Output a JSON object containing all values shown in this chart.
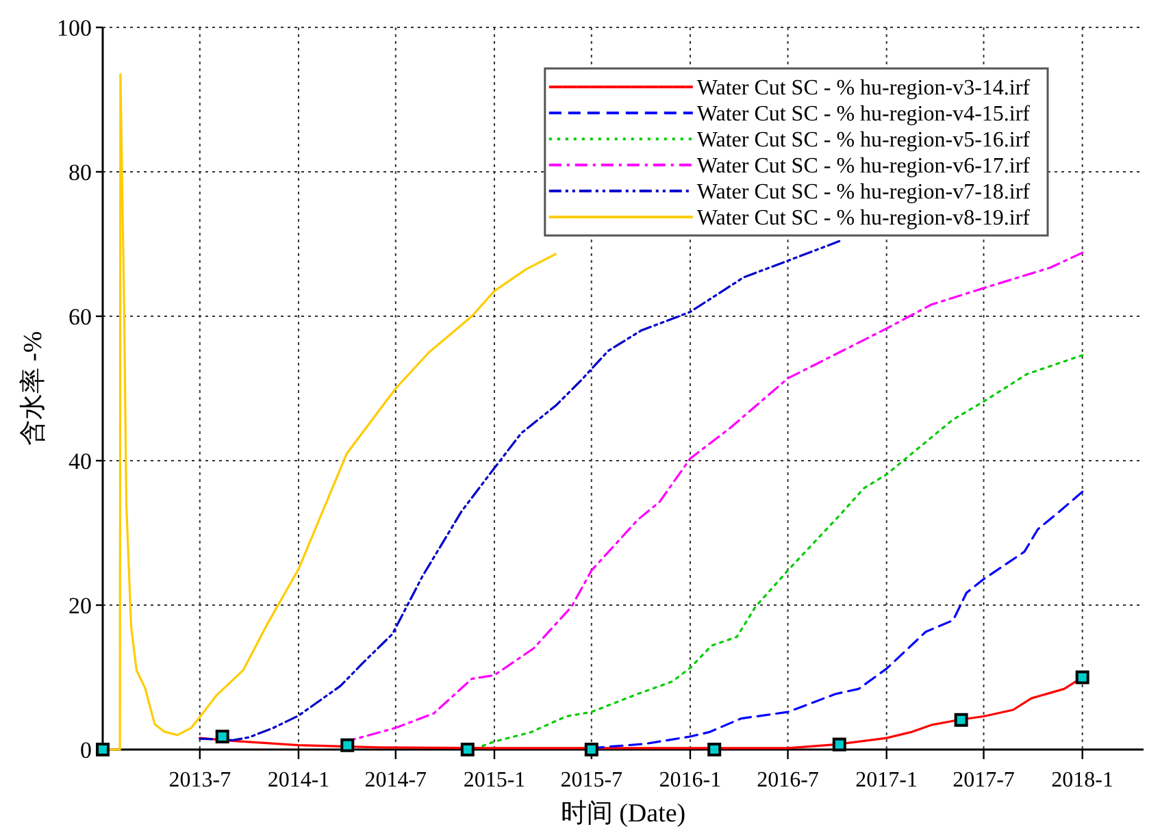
{
  "chart_data": {
    "type": "line",
    "xlabel": "时间 (Date)",
    "ylabel": "含水率 -%",
    "xlim": [
      "2013-01-01",
      "2018-04-25"
    ],
    "ylim": [
      0,
      100
    ],
    "yticks": [
      0,
      20,
      40,
      60,
      80,
      100
    ],
    "xticks": [
      {
        "value": "2013-07-01",
        "label": "2013-7"
      },
      {
        "value": "2014-01-01",
        "label": "2014-1"
      },
      {
        "value": "2014-07-01",
        "label": "2014-7"
      },
      {
        "value": "2015-01-01",
        "label": "2015-1"
      },
      {
        "value": "2015-07-01",
        "label": "2015-7"
      },
      {
        "value": "2016-01-01",
        "label": "2016-1"
      },
      {
        "value": "2016-07-01",
        "label": "2016-7"
      },
      {
        "value": "2017-01-01",
        "label": "2017-1"
      },
      {
        "value": "2017-07-01",
        "label": "2017-7"
      },
      {
        "value": "2018-01-01",
        "label": "2018-1"
      }
    ],
    "grid": true,
    "legend": "top right",
    "series": [
      {
        "name": "Water Cut SC - % hu-region-v3-14.irf",
        "color": "#ff0000",
        "line_style": "solid",
        "x": [
          "2013-07-01",
          "2013-09-01",
          "2014-01-01",
          "2014-06-01",
          "2015-01-01",
          "2016-07-01",
          "2016-09-28",
          "2017-01-01",
          "2017-02-15",
          "2017-03-25",
          "2017-05-15",
          "2017-07-01",
          "2017-08-25",
          "2017-09-28",
          "2017-11-28",
          "2018-01-01"
        ],
        "values": [
          1.6,
          1.2,
          0.6,
          0.3,
          0.2,
          0.2,
          0.7,
          1.6,
          2.4,
          3.4,
          4.1,
          4.6,
          5.5,
          7.1,
          8.4,
          10
        ]
      },
      {
        "name": "Water Cut SC - % hu-region-v4-15.irf",
        "color": "#0000ff",
        "line_style": "dashed",
        "x": [
          "2015-07-01",
          "2015-10-10",
          "2016-01-01",
          "2016-02-05",
          "2016-04-05",
          "2016-07-01",
          "2016-09-28",
          "2016-11-10",
          "2017-01-01",
          "2017-03-15",
          "2017-05-05",
          "2017-05-30",
          "2017-07-01",
          "2017-09-15",
          "2017-10-10",
          "2017-11-15",
          "2018-01-01"
        ],
        "values": [
          0.2,
          0.8,
          1.8,
          2.4,
          4.3,
          5.2,
          7.7,
          8.4,
          11.2,
          16.3,
          17.9,
          21.7,
          23.6,
          27.4,
          30.5,
          32.7,
          35.7
        ]
      },
      {
        "name": "Water Cut SC - % hu-region-v5-16.irf",
        "color": "#00cc00",
        "line_style": "dotted",
        "x": [
          "2014-12-10",
          "2015-01-01",
          "2015-03-10",
          "2015-05-15",
          "2015-07-01",
          "2015-09-25",
          "2015-11-28",
          "2016-01-01",
          "2016-02-10",
          "2016-03-28",
          "2016-05-02",
          "2016-07-01",
          "2016-10-05",
          "2016-11-20",
          "2017-01-01",
          "2017-05-05",
          "2017-07-01",
          "2017-09-20",
          "2018-01-01"
        ],
        "values": [
          0.5,
          1.1,
          2.4,
          4.6,
          5.2,
          7.7,
          9.4,
          11.3,
          14.4,
          15.6,
          19.8,
          24.8,
          32.4,
          36.2,
          38.1,
          45.7,
          48.2,
          52,
          54.6
        ]
      },
      {
        "name": "Water Cut SC - % hu-region-v6-17.irf",
        "color": "#ff00ff",
        "line_style": "dashdot",
        "x": [
          "2014-03-25",
          "2014-07-01",
          "2014-09-10",
          "2014-11-20",
          "2015-01-01",
          "2015-03-15",
          "2015-05-25",
          "2015-07-01",
          "2015-09-25",
          "2015-11-05",
          "2016-01-01",
          "2016-03-15",
          "2016-07-01",
          "2017-01-01",
          "2017-03-25",
          "2017-07-01",
          "2017-11-01",
          "2018-01-01"
        ],
        "values": [
          1.0,
          3,
          5,
          9.8,
          10.3,
          14,
          19.8,
          24.8,
          31.8,
          34.3,
          40.3,
          44.5,
          51.4,
          58.3,
          61.6,
          63.9,
          66.7,
          68.8
        ]
      },
      {
        "name": "Water Cut SC - % hu-region-v7-18.irf",
        "color": "#0000cc",
        "line_style": "dashdotdot",
        "x": [
          "2013-07-01",
          "2013-09-01",
          "2013-10-01",
          "2013-11-15",
          "2014-01-01",
          "2014-03-20",
          "2014-05-01",
          "2014-06-25",
          "2014-08-20",
          "2014-11-01",
          "2014-12-25",
          "2015-02-20",
          "2015-04-25",
          "2015-06-10",
          "2015-08-01",
          "2015-10-01",
          "2016-01-01",
          "2016-04-10",
          "2016-07-05",
          "2016-10-05"
        ],
        "values": [
          1.5,
          1.3,
          1.7,
          3.0,
          4.7,
          8.8,
          12,
          16,
          24,
          33,
          38.3,
          43.8,
          47.6,
          51,
          55.2,
          58,
          60.6,
          65.4,
          67.8,
          70.4
        ]
      },
      {
        "name": "Water Cut SC - % hu-region-v8-19.irf",
        "color": "#ffcc00",
        "line_style": "solid",
        "x": [
          "2013-01-01",
          "2013-02-02",
          "2013-02-03",
          "2013-02-10",
          "2013-02-14",
          "2013-02-23",
          "2013-03-05",
          "2013-03-21",
          "2013-04-08",
          "2013-04-25",
          "2013-05-20",
          "2013-06-15",
          "2013-07-01",
          "2013-08-01",
          "2013-09-20",
          "2013-11-01",
          "2014-01-01",
          "2014-02-15",
          "2014-04-01",
          "2014-07-01",
          "2014-09-01",
          "2014-11-20",
          "2015-01-01",
          "2015-03-01",
          "2015-04-25"
        ],
        "values": [
          0,
          0,
          93.5,
          61,
          34,
          17,
          11,
          8.5,
          3.5,
          2.5,
          2.0,
          3.0,
          4.5,
          7.5,
          11,
          17,
          25,
          33,
          41,
          50,
          55,
          60,
          63.5,
          66.5,
          68.6
        ]
      },
      {
        "type": "scatter",
        "marker": "square",
        "color": "#000000",
        "x": [
          "2013-01-01",
          "2013-08-12",
          "2014-04-02",
          "2014-11-12",
          "2015-07-01",
          "2016-02-15",
          "2016-10-05",
          "2017-05-20",
          "2018-01-01"
        ],
        "values": [
          0,
          1.8,
          0.6,
          0,
          0,
          0,
          0.7,
          4.1,
          10
        ]
      }
    ]
  }
}
